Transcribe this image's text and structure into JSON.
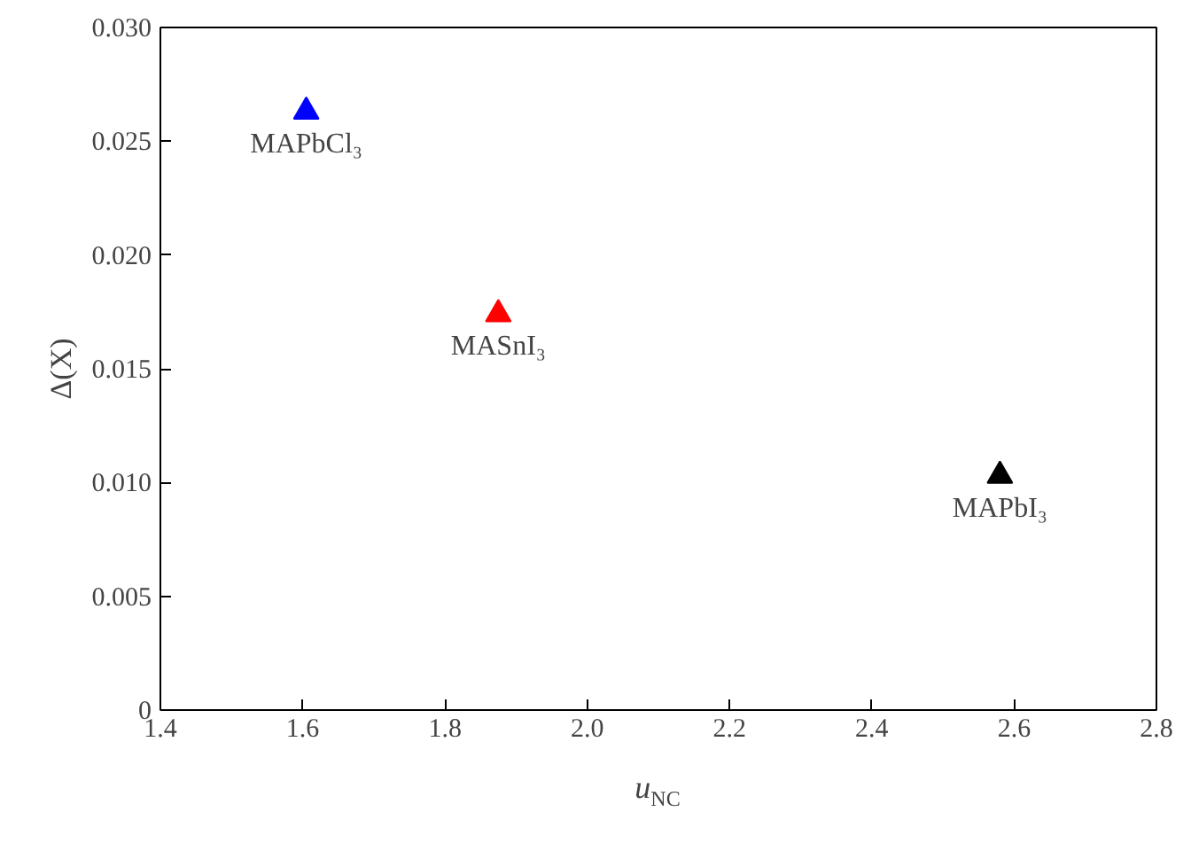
{
  "chart_data": {
    "type": "scatter",
    "xlabel": "u$_{NC}$",
    "ylabel": "Δ(X)",
    "xlim": [
      1.4,
      2.8
    ],
    "xticks": [
      1.4,
      1.6,
      1.8,
      {
        "value": 2,
        "label": "2.0"
      },
      2.2,
      2.4,
      2.6,
      2.8
    ],
    "ylim": [
      0,
      0.03
    ],
    "yticks": [
      {
        "value": 0,
        "label": "0"
      },
      {
        "value": 0.005,
        "label": "0.005"
      },
      {
        "value": 0.01,
        "label": "0.010"
      },
      {
        "value": 0.015,
        "label": "0.015"
      },
      {
        "value": 0.02,
        "label": "0.020"
      },
      {
        "value": 0.025,
        "label": "0.025"
      },
      {
        "value": 0.03,
        "label": "0.030"
      }
    ],
    "marker": "triangle",
    "grid": false,
    "series": [
      {
        "color": "#0000ff",
        "x": [
          1.605
        ],
        "values": [
          0.0263
        ]
      },
      {
        "color": "#ff0000",
        "x": [
          1.875
        ],
        "values": [
          0.0174
        ]
      },
      {
        "color": "#000000",
        "x": [
          2.58
        ],
        "values": [
          0.0103
        ]
      }
    ],
    "annotations": [
      {
        "text": "MAPbCl₃",
        "x": 1.605,
        "y": 0.0263
      },
      {
        "text": "MASnI₃",
        "x": 1.875,
        "y": 0.0174
      },
      {
        "text": "MAPbI₃",
        "x": 2.58,
        "y": 0.0103
      }
    ]
  }
}
